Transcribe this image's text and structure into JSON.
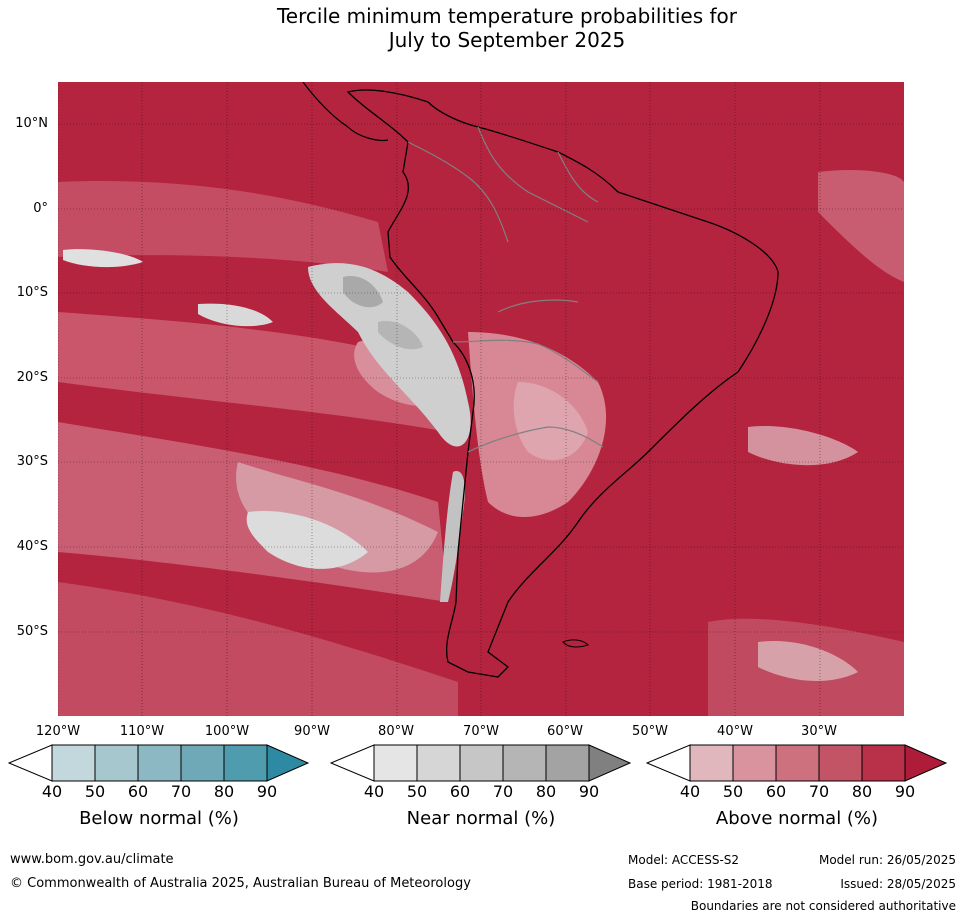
{
  "title_line1": "Tercile minimum temperature probabilities for",
  "title_line2": "July to September 2025",
  "lat_labels": [
    "10°N",
    "0°",
    "10°S",
    "20°S",
    "30°S",
    "40°S",
    "50°S"
  ],
  "lon_labels": [
    "120°W",
    "110°W",
    "100°W",
    "90°W",
    "80°W",
    "70°W",
    "60°W",
    "50°W",
    "40°W",
    "30°W"
  ],
  "legend": {
    "ticks": [
      "40",
      "50",
      "60",
      "70",
      "80",
      "90"
    ],
    "below_title": "Below normal (%)",
    "near_title": "Near normal (%)",
    "above_title": "Above normal (%)",
    "below_colors": [
      "#c3d8dd",
      "#a7c7ce",
      "#8cb8c3",
      "#6fa9b7",
      "#4f9caf",
      "#2e8aa3"
    ],
    "near_colors": [
      "#e5e5e5",
      "#d6d6d6",
      "#c6c6c6",
      "#b5b5b5",
      "#a3a3a3",
      "#808080"
    ],
    "above_colors": [
      "#e0b7bc",
      "#d8939e",
      "#cd717f",
      "#c35466",
      "#b83149",
      "#ae1c3a"
    ]
  },
  "footer": {
    "url": "www.bom.gov.au/climate",
    "copyright": "© Commonwealth of Australia 2025, Australian Bureau of Meteorology",
    "model": "Model: ACCESS-S2",
    "base_period": "Base period: 1981-2018",
    "model_run": "Model run: 26/05/2025",
    "issued": "Issued: 28/05/2025",
    "disclaimer": "Boundaries are not considered authoritative"
  }
}
